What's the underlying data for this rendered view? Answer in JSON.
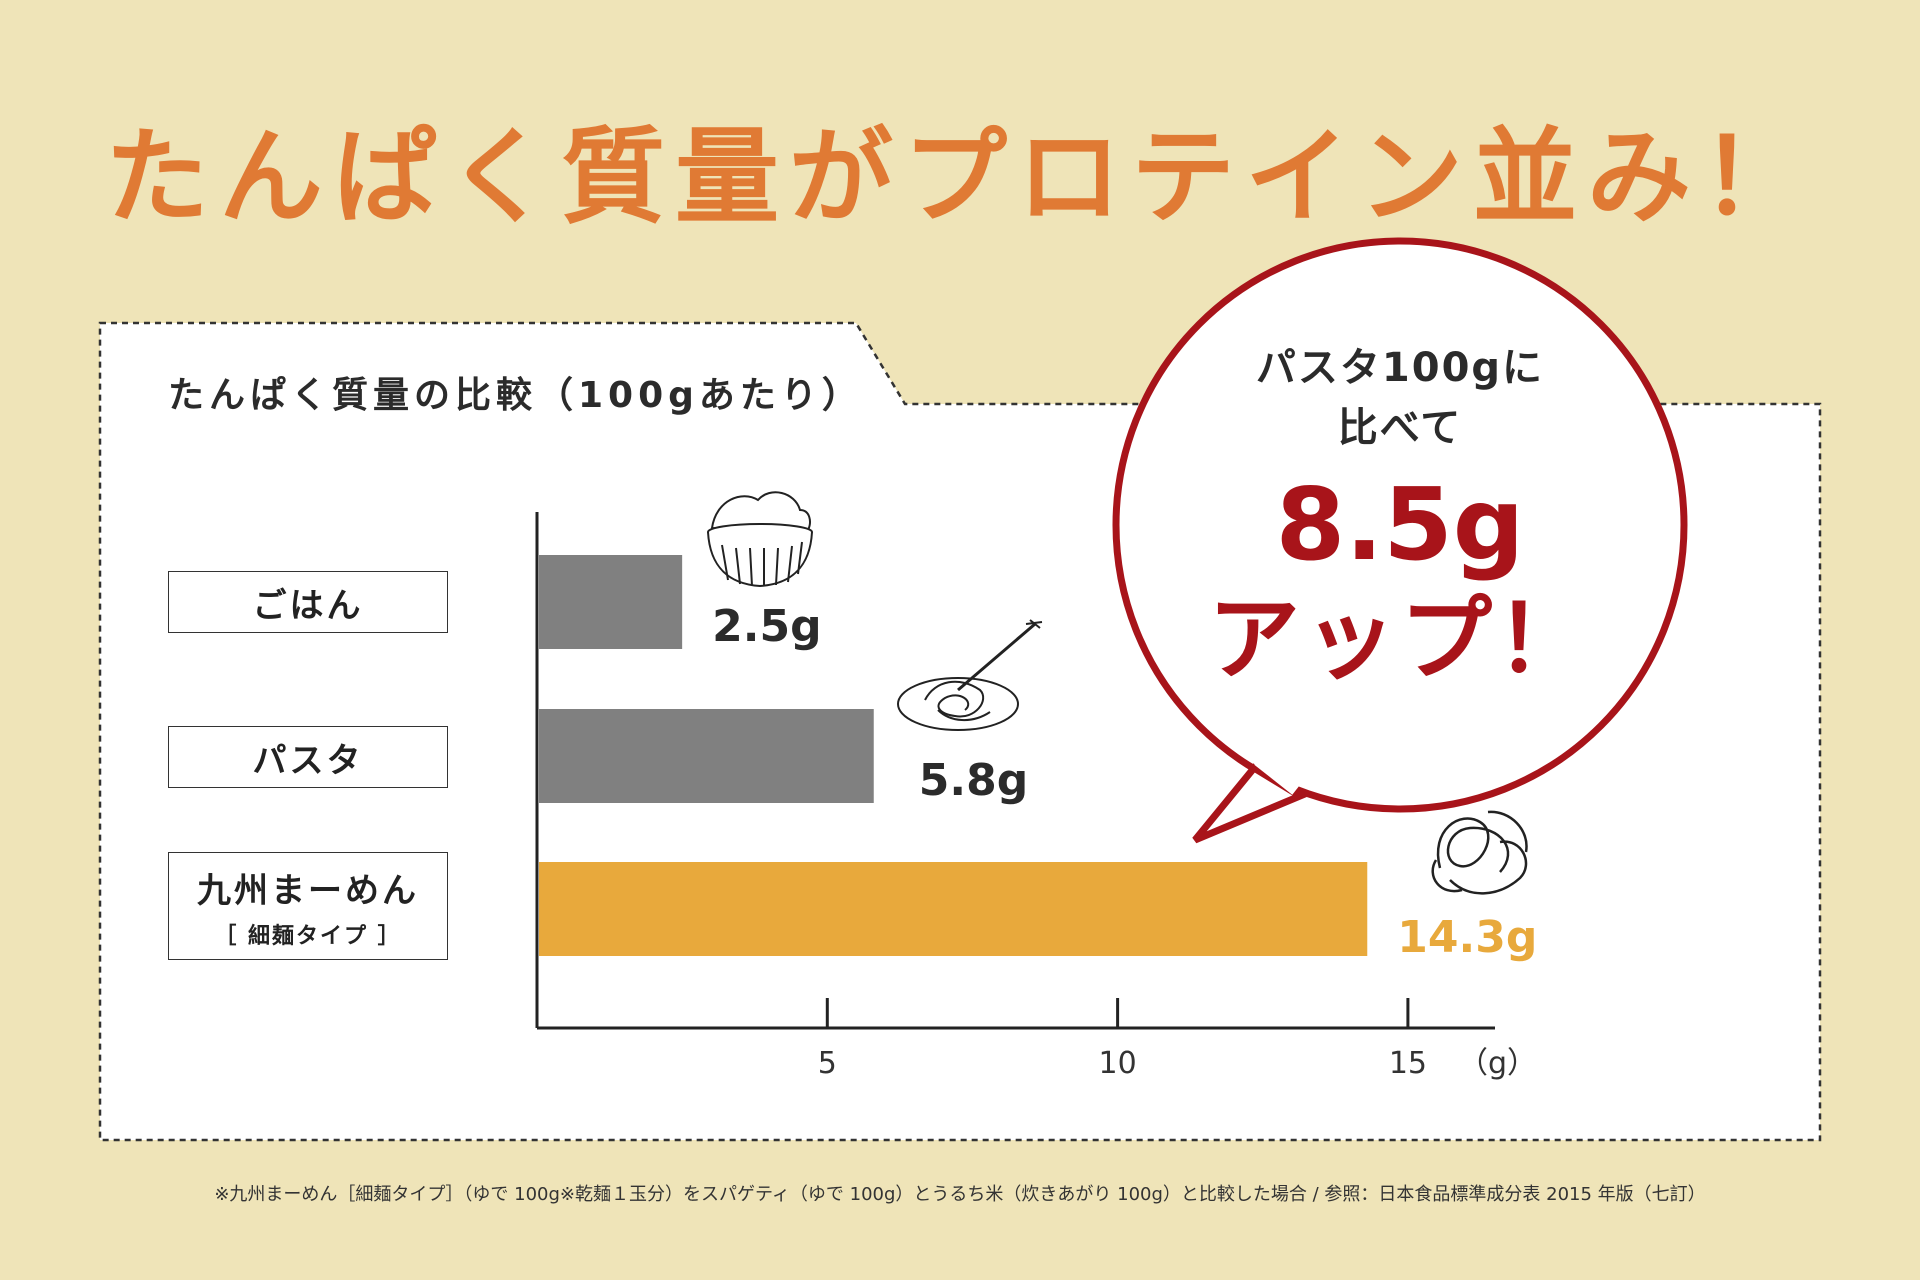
{
  "headline": "たんぱく質量がプロテイン並み！",
  "chart_data": {
    "type": "bar",
    "orientation": "horizontal",
    "title": "たんぱく質量の比較（100gあたり）",
    "categories": [
      {
        "name": "ごはん",
        "sub": ""
      },
      {
        "name": "パスタ",
        "sub": ""
      },
      {
        "name": "九州まーめん",
        "sub": "［ 細麺タイプ ］"
      }
    ],
    "values": [
      2.5,
      5.8,
      14.3
    ],
    "value_labels": [
      "2.5g",
      "5.8g",
      "14.3g"
    ],
    "bar_colors": [
      "#808080",
      "#808080",
      "#e8a93c"
    ],
    "label_colors": [
      "#2b2b2b",
      "#2b2b2b",
      "#e8a93c"
    ],
    "xlim": [
      0,
      16.5
    ],
    "ticks": [
      5,
      10,
      15
    ],
    "tick_labels": [
      "5",
      "10",
      "15"
    ],
    "unit_label": "（g）",
    "grid": false
  },
  "bubble": {
    "line1": "パスタ100gに",
    "line2": "比べて",
    "amount": "8.5g",
    "action": "アップ！"
  },
  "footnote": "※九州まーめん［細麺タイプ］（ゆで 100g※乾麺１玉分）をスパゲティ（ゆで 100g）とうるち米（炊きあがり 100g）と比較した場合 / 参照：日本食品標準成分表 2015 年版（七訂）",
  "colors": {
    "background": "#efe4b8",
    "headline": "#e07a34",
    "bubble_border": "#a8141a",
    "accent": "#e8a93c"
  }
}
